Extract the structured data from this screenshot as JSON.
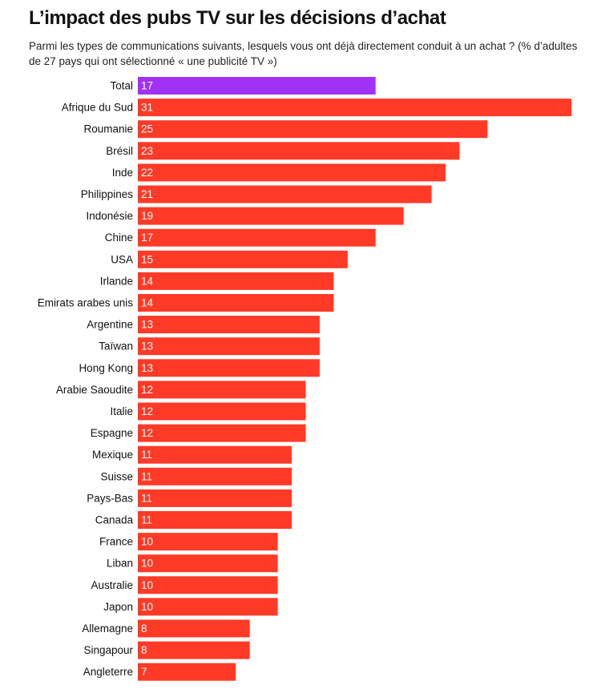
{
  "title": "L’impact des pubs TV sur les décisions d’achat",
  "subtitle": "Parmi les types de communications suivants, lesquels vous ont déjà directement conduit à un achat ? (% d’adultes de 27 pays qui ont sélectionné « une publicité TV »)",
  "colors": {
    "highlight": "#a032f5",
    "bar": "#ff3a26",
    "label_in_bar": "#ffffff",
    "category_text": "#111111"
  },
  "chart_data": {
    "type": "bar",
    "orientation": "horizontal",
    "title": "L’impact des pubs TV sur les décisions d’achat",
    "subtitle": "Parmi les types de communications suivants, lesquels vous ont déjà directement conduit à un achat ? (% d’adultes de 27 pays qui ont sélectionné « une publicité TV »)",
    "xlabel": "",
    "ylabel": "",
    "grid": false,
    "legend": "none",
    "highlight_category": "Total",
    "categories": [
      "Total",
      "Afrique du Sud",
      "Roumanie",
      "Brésil",
      "Inde",
      "Philippines",
      "Indonésie",
      "Chine",
      "USA",
      "Irlande",
      "Emirats arabes unis",
      "Argentine",
      "Taïwan",
      "Hong Kong",
      "Arabie Saoudite",
      "Italie",
      "Espagne",
      "Mexique",
      "Suisse",
      "Pays-Bas",
      "Canada",
      "France",
      "Liban",
      "Australie",
      "Japon",
      "Allemagne",
      "Singapour",
      "Angleterre"
    ],
    "values": [
      17,
      31,
      25,
      23,
      22,
      21,
      19,
      17,
      15,
      14,
      14,
      13,
      13,
      13,
      12,
      12,
      12,
      11,
      11,
      11,
      11,
      10,
      10,
      10,
      10,
      8,
      8,
      7
    ],
    "xlim": [
      0,
      31
    ]
  }
}
